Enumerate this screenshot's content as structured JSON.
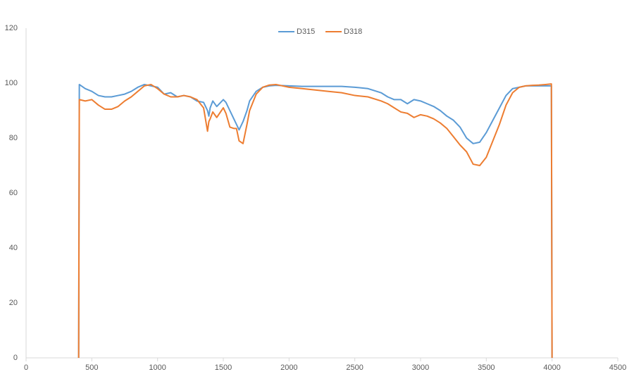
{
  "chart_data": {
    "type": "line",
    "x": [
      400,
      405,
      450,
      500,
      550,
      600,
      650,
      700,
      750,
      800,
      850,
      900,
      950,
      1000,
      1050,
      1100,
      1150,
      1200,
      1250,
      1300,
      1350,
      1380,
      1390,
      1400,
      1420,
      1450,
      1500,
      1520,
      1550,
      1580,
      1600,
      1620,
      1650,
      1680,
      1700,
      1750,
      1800,
      1850,
      1900,
      2000,
      2100,
      2200,
      2300,
      2400,
      2500,
      2600,
      2700,
      2750,
      2800,
      2850,
      2900,
      2950,
      3000,
      3050,
      3100,
      3150,
      3200,
      3250,
      3300,
      3350,
      3400,
      3450,
      3500,
      3550,
      3600,
      3650,
      3700,
      3750,
      3800,
      3850,
      3900,
      3950,
      3995,
      4000
    ],
    "series": [
      {
        "name": "D315",
        "color": "#5b9bd5",
        "values": [
          0,
          99.5,
          98,
          97,
          95.5,
          95,
          95,
          95.5,
          96,
          97,
          98.5,
          99.5,
          99,
          98.5,
          96,
          96.5,
          95,
          95.5,
          95,
          93.5,
          93,
          90,
          88,
          91,
          93.5,
          91.5,
          94,
          93,
          90,
          87,
          85,
          83,
          86,
          90,
          93.5,
          97,
          98.5,
          99,
          99.2,
          99,
          98.8,
          98.8,
          98.8,
          98.8,
          98.5,
          98,
          96.5,
          95,
          94,
          94,
          92.5,
          94,
          93.5,
          92.5,
          91.5,
          90,
          88,
          86.5,
          84,
          80,
          78,
          78.5,
          82,
          86.5,
          91,
          95.5,
          98,
          98.5,
          99,
          99,
          99,
          99,
          99,
          0
        ]
      },
      {
        "name": "D318",
        "color": "#ed7d31",
        "values": [
          0,
          94,
          93.5,
          94,
          92,
          90.5,
          90.5,
          91.5,
          93.5,
          95,
          97,
          99,
          99.5,
          98,
          96,
          95,
          95,
          95.5,
          95,
          94,
          91,
          82.5,
          86,
          87,
          89.5,
          87.5,
          91,
          89,
          84,
          83.5,
          83.5,
          79,
          78,
          85,
          90,
          96,
          98.5,
          99.3,
          99.5,
          98.5,
          98,
          97.5,
          97,
          96.5,
          95.5,
          95,
          93.5,
          92.5,
          91,
          89.5,
          89,
          87.5,
          88.5,
          88,
          87,
          85.5,
          83.5,
          80.5,
          77.5,
          75,
          70.5,
          70,
          73,
          79,
          85,
          92,
          96.5,
          98.5,
          99,
          99.2,
          99.3,
          99.5,
          99.7,
          0
        ]
      }
    ],
    "xlim": [
      0,
      4500
    ],
    "xticks": [
      0,
      500,
      1000,
      1500,
      2000,
      2500,
      3000,
      3500,
      4000,
      4500
    ],
    "ylim": [
      0,
      120
    ],
    "yticks": [
      0,
      20,
      40,
      60,
      80,
      100,
      120
    ],
    "grid": false,
    "legend": "top"
  }
}
